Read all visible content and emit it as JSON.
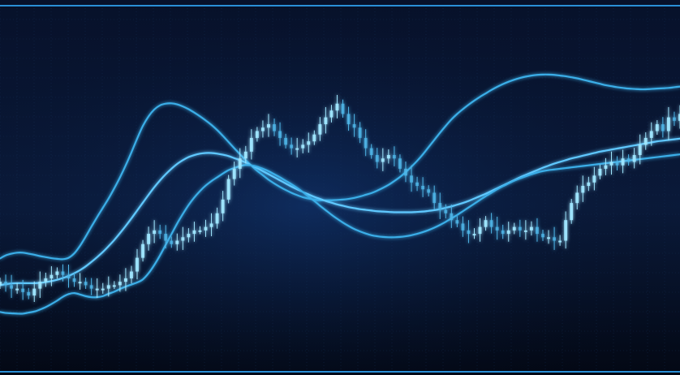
{
  "chart_data": {
    "type": "candlestick",
    "title": "",
    "xlabel": "",
    "ylabel": "",
    "indicator": "bollinger-bands",
    "x": [
      0,
      1,
      2,
      3,
      4,
      5,
      6,
      7,
      8,
      9,
      10,
      11,
      12,
      13,
      14,
      15,
      16,
      17,
      18,
      19,
      20,
      21,
      22,
      23,
      24,
      25,
      26,
      27,
      28,
      29,
      30,
      31,
      32,
      33,
      34,
      35,
      36,
      37,
      38,
      39,
      40,
      41,
      42,
      43,
      44,
      45,
      46,
      47,
      48,
      49,
      50,
      51,
      52,
      53,
      54,
      55,
      56,
      57,
      58,
      59,
      60,
      61,
      62,
      63,
      64,
      65,
      66,
      67,
      68,
      69,
      70,
      71,
      72,
      73,
      74,
      75,
      76,
      77,
      78,
      79,
      80,
      81,
      82,
      83,
      84,
      85,
      86,
      87,
      88,
      89,
      90,
      91,
      92,
      93,
      94,
      95,
      96,
      97,
      98,
      99,
      100,
      101,
      102,
      103,
      104,
      105,
      106,
      107,
      108,
      109,
      110,
      111,
      112,
      113,
      114,
      115,
      116,
      117,
      118,
      119
    ],
    "ylim": [
      0,
      100
    ],
    "xlim": [
      0,
      119
    ],
    "series": [
      {
        "values": [
          22,
          21,
          20,
          20,
          19,
          18,
          20,
          22,
          23,
          24,
          25,
          24,
          23,
          22,
          22,
          21,
          20,
          20,
          20,
          21,
          21,
          22,
          23,
          25,
          29,
          33,
          36,
          37,
          36,
          34,
          33,
          34,
          35,
          36,
          37,
          37,
          38,
          39,
          42,
          46,
          52,
          55,
          58,
          60,
          64,
          66,
          67,
          68,
          66,
          64,
          62,
          61,
          61,
          62,
          63,
          65,
          68,
          70,
          72,
          74,
          71,
          68,
          67,
          64,
          61,
          59,
          57,
          58,
          59,
          58,
          55,
          53,
          51,
          50,
          49,
          48,
          45,
          43,
          42,
          40,
          39,
          37,
          36,
          36,
          38,
          40,
          38,
          37,
          36,
          37,
          38,
          37,
          37,
          38,
          36,
          35,
          35,
          34,
          34,
          40,
          45,
          48,
          50,
          51,
          53,
          55,
          56,
          57,
          56,
          58,
          57,
          59,
          62,
          64,
          66,
          68,
          66,
          70,
          69,
          71
        ]
      },
      {
        "values": [
          28.8,
          29.7,
          30.2,
          30.5,
          30.5,
          30.2,
          29.9,
          29.5,
          29.2,
          28.9,
          28.7,
          28.6,
          29,
          30.3,
          32.5,
          35.2,
          38.1,
          40.9,
          43.6,
          46.3,
          49.3,
          52.5,
          56,
          59.8,
          63.8,
          67.5,
          70.3,
          72.3,
          73.5,
          74,
          74.1,
          73.8,
          73.2,
          72.4,
          71.4,
          70.3,
          69.1,
          67.8,
          66.3,
          64.6,
          62.8,
          61,
          59.2,
          57.5,
          55.9,
          54.4,
          53.1,
          51.8,
          50.7,
          49.7,
          48.8,
          48,
          47.3,
          46.7,
          46.3,
          46,
          45.8,
          45.8,
          45.8,
          45.9,
          46,
          46.2,
          46.5,
          46.9,
          47.4,
          47.9,
          48.6,
          49.4,
          50.3,
          51.4,
          52.6,
          54,
          55.6,
          57.3,
          59.2,
          61.3,
          63.4,
          65.5,
          67.5,
          69.4,
          71,
          72.4,
          73.7,
          74.9,
          76,
          77,
          78,
          78.9,
          79.7,
          80.4,
          81,
          81.5,
          81.9,
          82.2,
          82.4,
          82.5,
          82.5,
          82.4,
          82.2,
          82,
          81.7,
          81.4,
          81,
          80.6,
          80.2,
          79.8,
          79.4,
          79.1,
          78.8,
          78.6,
          78.4,
          78.3,
          78.2,
          78.2,
          78.3,
          78.4,
          78.5,
          78.6,
          78.8,
          79
        ]
      },
      {
        "values": [
          21,
          21.3,
          21.5,
          21.6,
          21.6,
          21.6,
          21.6,
          21.7,
          21.9,
          22.2,
          22.6,
          23.1,
          23.7,
          24.5,
          25.4,
          26.5,
          27.8,
          29.2,
          30.7,
          32.4,
          34.2,
          36.2,
          38.3,
          40.5,
          42.8,
          45.1,
          47.4,
          49.6,
          51.6,
          53.4,
          55,
          56.4,
          57.5,
          58.4,
          59,
          59.4,
          59.6,
          59.6,
          59.4,
          59.1,
          58.7,
          58.1,
          57.5,
          56.8,
          56,
          55.2,
          54.3,
          53.4,
          52.5,
          51.6,
          50.7,
          49.8,
          49,
          48.2,
          47.5,
          46.8,
          46.2,
          45.6,
          45.1,
          44.6,
          44.2,
          43.8,
          43.5,
          43.2,
          43,
          42.8,
          42.6,
          42.5,
          42.4,
          42.3,
          42.3,
          42.3,
          42.3,
          42.4,
          42.5,
          42.7,
          42.9,
          43.2,
          43.6,
          44,
          44.5,
          45,
          45.6,
          46.3,
          47,
          47.7,
          48.5,
          49.3,
          50.1,
          50.9,
          51.7,
          52.5,
          53.2,
          53.9,
          54.6,
          55.3,
          55.9,
          56.5,
          57,
          57.5,
          58,
          58.4,
          58.8,
          59.2,
          59.6,
          60,
          60.3,
          60.6,
          60.9,
          61.2,
          61.5,
          61.8,
          62.1,
          62.4,
          62.7,
          63,
          63.2,
          63.4,
          63.6,
          63.8
        ]
      },
      {
        "values": [
          13.2,
          12.9,
          12.8,
          12.7,
          12.7,
          13,
          13.3,
          13.9,
          14.6,
          15.5,
          16.5,
          17.6,
          18.4,
          18.7,
          18.3,
          17.8,
          17.5,
          17.5,
          17.8,
          18.5,
          19.1,
          19.9,
          20.6,
          21.2,
          21.8,
          22.7,
          24.5,
          26.9,
          29.7,
          32.8,
          35.9,
          39,
          41.8,
          44.4,
          46.6,
          48.5,
          50.1,
          51.4,
          52.5,
          53.6,
          54.6,
          55.2,
          55.8,
          56.1,
          56,
          55.6,
          55,
          54.3,
          53.4,
          52.5,
          51.5,
          50.5,
          49.4,
          48.2,
          46.9,
          45.6,
          44.2,
          42.9,
          41.6,
          40.4,
          39.3,
          38.3,
          37.4,
          36.7,
          36.1,
          35.6,
          35.3,
          35.1,
          35,
          35,
          35.1,
          35.3,
          35.6,
          36,
          36.5,
          37.1,
          37.8,
          38.6,
          39.5,
          40.5,
          41.5,
          42.6,
          43.7,
          44.8,
          45.9,
          47,
          48,
          49,
          49.9,
          50.7,
          51.5,
          52.2,
          52.8,
          53.4,
          53.9,
          54.3,
          54.6,
          54.8,
          55,
          55.2,
          55.4,
          55.6,
          55.8,
          56,
          56.2,
          56.4,
          56.6,
          56.8,
          57,
          57.2,
          57.4,
          57.6,
          57.8,
          58,
          58.2,
          58.4,
          58.6,
          58.8,
          59,
          59.2
        ]
      }
    ],
    "colors": {
      "background_top": "#07112a",
      "background_bottom": "#030814",
      "candle_bright": "#9fe6ff",
      "candle_mid": "#4fb6e8",
      "band_line": "#3aaee8",
      "middle_line": "#5fc8ff",
      "grid": "#1b3a66",
      "frame_line": "#2a8fd6"
    },
    "grid": true,
    "legend": "none"
  }
}
